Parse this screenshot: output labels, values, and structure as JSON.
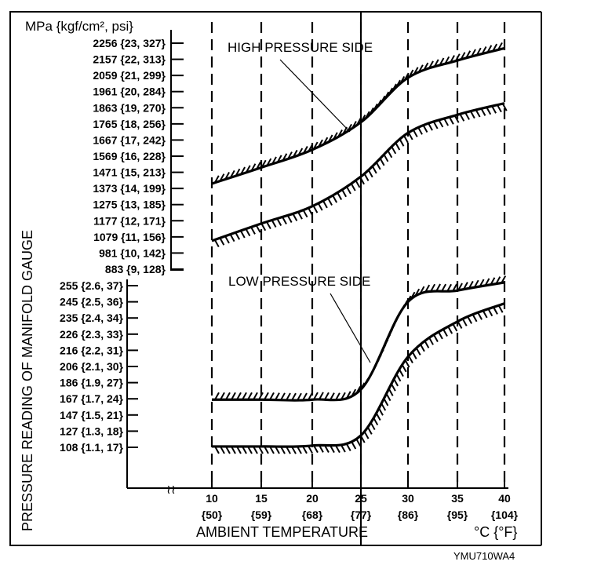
{
  "chart_data": {
    "type": "line",
    "title": "",
    "unit_label": "MPa {kgf/cm², psi}",
    "ylabel": "PRESSURE READING OF MANIFOLD GAUGE",
    "xlabel": "AMBIENT TEMPERATURE",
    "x_unit": "°C {°F}",
    "figure_code": "YMU710WA4",
    "x": [
      10,
      15,
      20,
      25,
      30,
      35,
      40
    ],
    "x_ticks": [
      {
        "c": "10",
        "f": "{50}"
      },
      {
        "c": "15",
        "f": "{59}"
      },
      {
        "c": "20",
        "f": "{68}"
      },
      {
        "c": "25",
        "f": "{77}"
      },
      {
        "c": "30",
        "f": "{86}"
      },
      {
        "c": "35",
        "f": "{95}"
      },
      {
        "c": "40",
        "f": "{104}"
      }
    ],
    "high_axis_ticks": [
      {
        "value": 2256,
        "label": "2256 {23, 327}"
      },
      {
        "value": 2157,
        "label": "2157 {22, 313}"
      },
      {
        "value": 2059,
        "label": "2059 {21, 299}"
      },
      {
        "value": 1961,
        "label": "1961 {20, 284}"
      },
      {
        "value": 1863,
        "label": "1863 {19, 270}"
      },
      {
        "value": 1765,
        "label": "1765 {18, 256}"
      },
      {
        "value": 1667,
        "label": "1667 {17, 242}"
      },
      {
        "value": 1569,
        "label": "1569 {16, 228}"
      },
      {
        "value": 1471,
        "label": "1471 {15, 213}"
      },
      {
        "value": 1373,
        "label": "1373 {14, 199}"
      },
      {
        "value": 1275,
        "label": "1275 {13, 185}"
      },
      {
        "value": 1177,
        "label": "1177 {12, 171}"
      },
      {
        "value": 1079,
        "label": "1079 {11, 156}"
      },
      {
        "value": 981,
        "label": "981 {10, 142}"
      },
      {
        "value": 883,
        "label": "883 {9, 128}"
      }
    ],
    "low_axis_ticks": [
      {
        "value": 255,
        "label": "255 {2.6, 37}"
      },
      {
        "value": 245,
        "label": "245 {2.5, 36}"
      },
      {
        "value": 235,
        "label": "235 {2.4, 34}"
      },
      {
        "value": 226,
        "label": "226 {2.3, 33}"
      },
      {
        "value": 216,
        "label": "216 {2.2, 31}"
      },
      {
        "value": 206,
        "label": "206 {2.1, 30}"
      },
      {
        "value": 186,
        "label": "186 {1.9, 27}"
      },
      {
        "value": 167,
        "label": "167 {1.7, 24}"
      },
      {
        "value": 147,
        "label": "147 {1.5, 21}"
      },
      {
        "value": 127,
        "label": "127 {1.3, 18}"
      },
      {
        "value": 108,
        "label": "108 {1.1, 17}"
      }
    ],
    "series": [
      {
        "name": "High pressure side (upper limit)",
        "group": "high",
        "hatch": "up",
        "values": [
          1402,
          1500,
          1608,
          1775,
          2045,
          2150,
          2225
        ]
      },
      {
        "name": "High pressure side (lower limit)",
        "group": "high",
        "hatch": "down",
        "values": [
          1055,
          1160,
          1265,
          1445,
          1710,
          1820,
          1890
        ]
      },
      {
        "name": "Low pressure side (upper limit)",
        "group": "low",
        "hatch": "up",
        "values": [
          166,
          166,
          166,
          178,
          245,
          252,
          257
        ]
      },
      {
        "name": "Low pressure side (lower limit)",
        "group": "low",
        "hatch": "down",
        "values": [
          109,
          109,
          110,
          122,
          212,
          233,
          244
        ]
      }
    ],
    "annotations": [
      {
        "text": "HIGH PRESSURE SIDE",
        "points_to": "High pressure side"
      },
      {
        "text": "LOW PRESSURE SIDE",
        "points_to": "Low pressure side"
      }
    ],
    "grid": "vertical dashed lines at each temperature tick",
    "axis_break": true,
    "legend": "none"
  }
}
